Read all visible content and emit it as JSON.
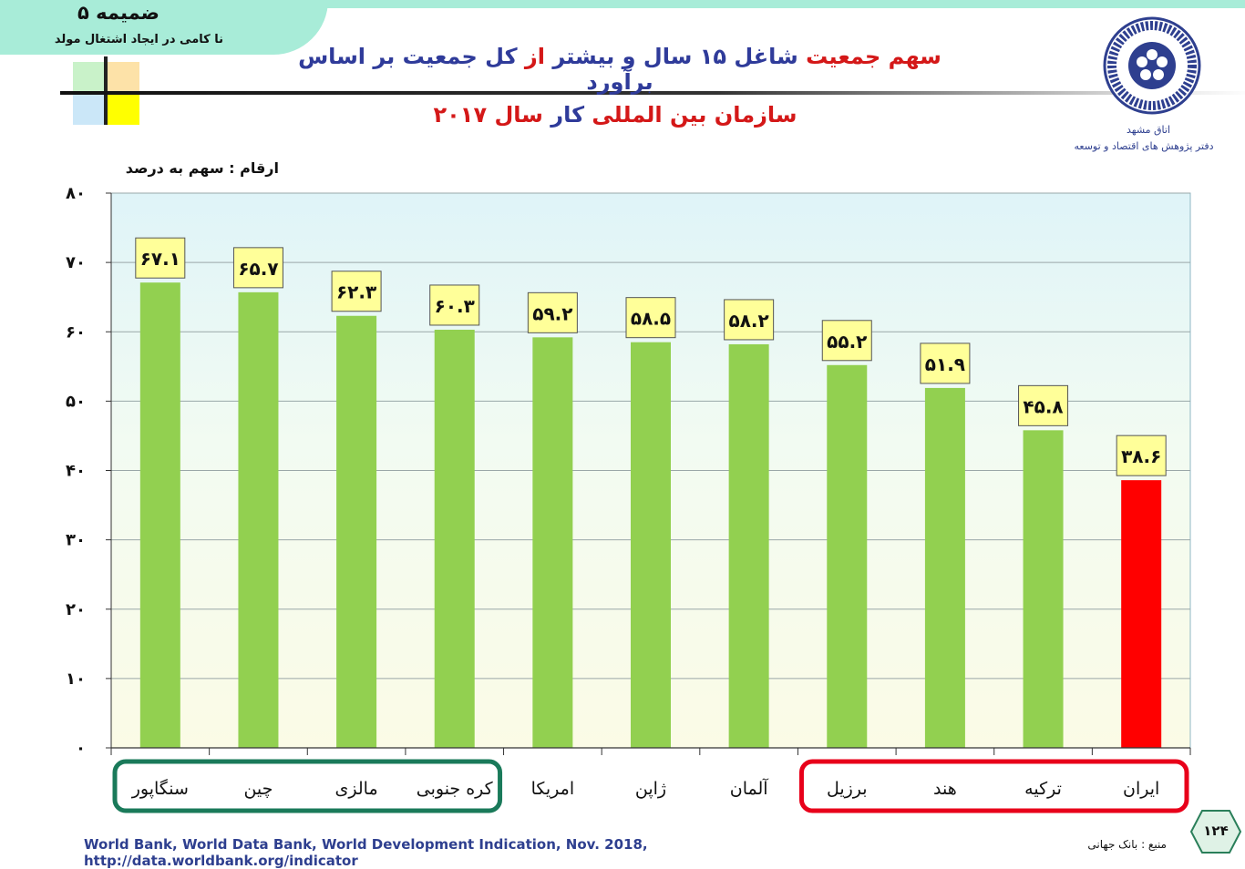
{
  "annex": {
    "title": "ضمیمه ۵",
    "subtitle": "نا کامی در ایجاد اشتغال مولد"
  },
  "title_line1": [
    {
      "text": "سهم جمعیت ",
      "color": "red"
    },
    {
      "text": "شاغل ۱۵ سال و بیشتر ",
      "color": "blue"
    },
    {
      "text": "از ",
      "color": "red"
    },
    {
      "text": "کل جمعیت ",
      "color": "blue"
    },
    {
      "text": "بر اساس برآورد",
      "color": "blue"
    }
  ],
  "title_line2": [
    {
      "text": "سازمان بین المللی ",
      "color": "red"
    },
    {
      "text": "کار ",
      "color": "blue"
    },
    {
      "text": "سال ۲۰۱۷",
      "color": "red"
    }
  ],
  "logo": {
    "line1": "اتاق مشهد",
    "line2": "دفتر پژوهش های اقتصاد و توسعه"
  },
  "unit_label": "ارقام : سهم به درصد",
  "chart_data": {
    "type": "bar",
    "categories": [
      "سنگاپور",
      "چین",
      "مالزی",
      "کره جنوبی",
      "امریکا",
      "ژاپن",
      "آلمان",
      "برزیل",
      "هند",
      "ترکیه",
      "ایران"
    ],
    "values": [
      67.1,
      65.7,
      62.3,
      60.3,
      59.2,
      58.5,
      58.2,
      55.2,
      51.9,
      45.8,
      38.6
    ],
    "value_labels": [
      "۶۷.۱",
      "۶۵.۷",
      "۶۲.۳",
      "۶۰.۳",
      "۵۹.۲",
      "۵۸.۵",
      "۵۸.۲",
      "۵۵.۲",
      "۵۱.۹",
      "۴۵.۸",
      "۳۸.۶"
    ],
    "bar_colors": [
      "#92d050",
      "#92d050",
      "#92d050",
      "#92d050",
      "#92d050",
      "#92d050",
      "#92d050",
      "#92d050",
      "#92d050",
      "#92d050",
      "#ff0000"
    ],
    "ylim": [
      0,
      80
    ],
    "yticks": [
      0,
      10,
      20,
      30,
      40,
      50,
      60,
      70,
      80
    ],
    "ytick_labels": [
      "۰",
      "۱۰",
      "۲۰",
      "۳۰",
      "۴۰",
      "۵۰",
      "۶۰",
      "۷۰",
      "۸۰"
    ],
    "grid": true,
    "groups": [
      {
        "categories": [
          "سنگاپور",
          "چین",
          "مالزی",
          "کره جنوبی"
        ],
        "color": "#1a7a5a"
      },
      {
        "categories": [
          "برزیل",
          "هند",
          "ترکیه",
          "ایران"
        ],
        "color": "#e8001a"
      }
    ]
  },
  "source_en": "World Bank, World Data Bank, World Development Indication, Nov. 2018, http://data.worldbank.org/indicator",
  "source_fa": "منبع : بانک جهانی",
  "page_number": "۱۲۴"
}
